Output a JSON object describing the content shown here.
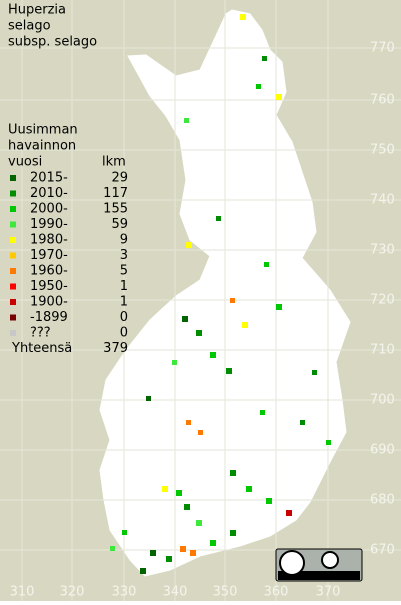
{
  "title": [
    "Huperzia",
    "selago",
    "subsp. selago"
  ],
  "legend": {
    "heading": [
      "Uusimman",
      "havainnon",
      "vuosi"
    ],
    "count_heading": "lkm",
    "rows": [
      {
        "label": "2015-",
        "count": 29,
        "color": "#006400"
      },
      {
        "label": "2010-",
        "count": 117,
        "color": "#008c00"
      },
      {
        "label": "2000-",
        "count": 155,
        "color": "#00c800"
      },
      {
        "label": "1990-",
        "count": 59,
        "color": "#3ce83c"
      },
      {
        "label": "1980-",
        "count": 9,
        "color": "#ffff00"
      },
      {
        "label": "1970-",
        "count": 3,
        "color": "#ffc800"
      },
      {
        "label": "1960-",
        "count": 5,
        "color": "#ff7800"
      },
      {
        "label": "1950-",
        "count": 1,
        "color": "#ff0000"
      },
      {
        "label": "1900-",
        "count": 1,
        "color": "#c80000"
      },
      {
        "label": "-1899",
        "count": 0,
        "color": "#780000"
      },
      {
        "label": "???",
        "count": 0,
        "color": "#c8c8c8"
      }
    ],
    "total": {
      "label": "Yhteensä",
      "count": 379
    }
  },
  "y_labels": [
    "770",
    "760",
    "750",
    "740",
    "730",
    "720",
    "710",
    "700",
    "690",
    "680",
    "670"
  ],
  "x_labels": [
    "310",
    "320",
    "330",
    "340",
    "350",
    "360",
    "370"
  ]
}
